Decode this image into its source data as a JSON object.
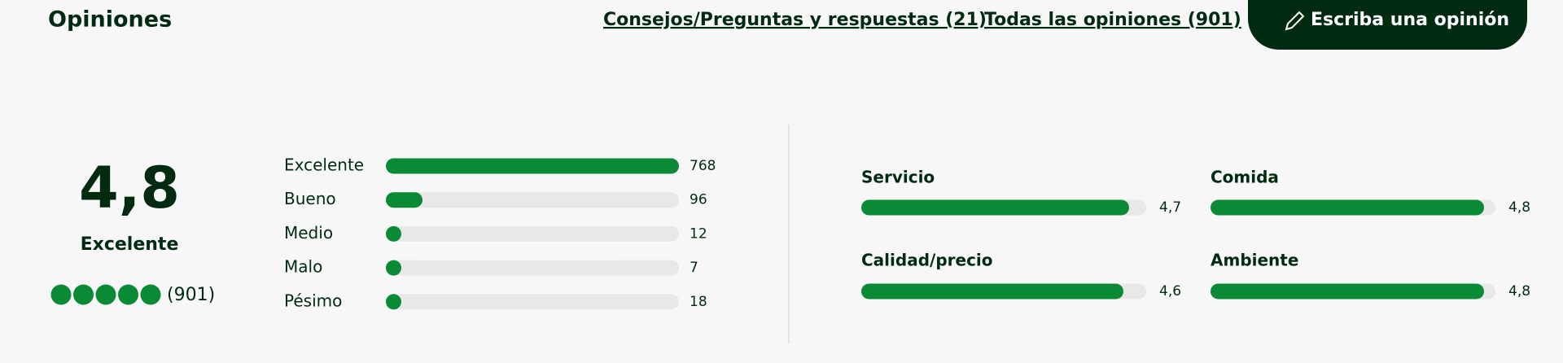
{
  "header": {
    "title": "Opiniones",
    "links": [
      "Consejos/Preguntas y respuestas (21)",
      "Todas las opiniones (901)"
    ],
    "button": "Escriba una opinión"
  },
  "summary": {
    "rating": {
      "value": 4.8,
      "label": "4,8"
    },
    "rating_text": "Excelente",
    "count_label": "(901)"
  },
  "distribution": [
    {
      "label": "Excelente",
      "count": 768
    },
    {
      "label": "Bueno",
      "count": 96
    },
    {
      "label": "Medio",
      "count": 12
    },
    {
      "label": "Malo",
      "count": 7
    },
    {
      "label": "Pésimo",
      "count": 18
    }
  ],
  "subratings": [
    {
      "label": "Servicio",
      "score": {
        "value": 4.7,
        "label": "4,7"
      }
    },
    {
      "label": "Comida",
      "score": {
        "value": 4.8,
        "label": "4,8"
      }
    },
    {
      "label": "Calidad/precio",
      "score": {
        "value": 4.6,
        "label": "4,6"
      }
    },
    {
      "label": "Ambiente",
      "score": {
        "value": 4.8,
        "label": "4,8"
      }
    }
  ]
}
